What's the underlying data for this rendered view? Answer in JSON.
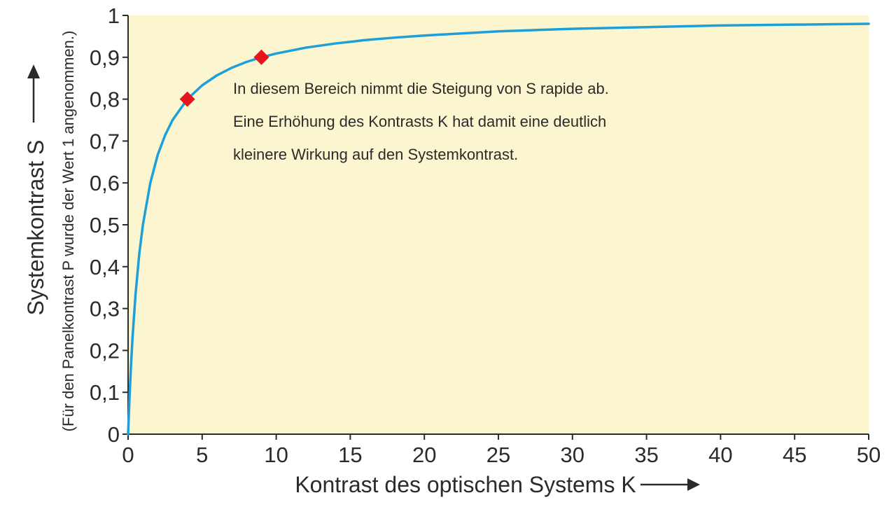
{
  "chart_data": {
    "type": "line",
    "x_label": "Kontrast des optischen Systems K",
    "y_label": "Systemkontrast S",
    "y_label_note": "(Für den Panelkontrast P wurde der Wert 1 angenommen.)",
    "xlim": [
      0,
      50
    ],
    "ylim": [
      0,
      1
    ],
    "x_ticks": [
      "0",
      "5",
      "10",
      "15",
      "20",
      "25",
      "30",
      "35",
      "40",
      "45",
      "50"
    ],
    "y_ticks": [
      "0",
      "0,1",
      "0,2",
      "0,3",
      "0,4",
      "0,5",
      "0,6",
      "0,7",
      "0,8",
      "0,9",
      "1"
    ],
    "series": [
      {
        "x": [
          0,
          0.1,
          0.2,
          0.3,
          0.5,
          0.75,
          1,
          1.5,
          2,
          2.5,
          3,
          4,
          5,
          6,
          7,
          8,
          9,
          10,
          12,
          14,
          16,
          18,
          20,
          25,
          30,
          35,
          40,
          45,
          50
        ],
        "y": [
          0,
          0.091,
          0.167,
          0.231,
          0.333,
          0.429,
          0.5,
          0.6,
          0.667,
          0.714,
          0.75,
          0.8,
          0.833,
          0.857,
          0.875,
          0.889,
          0.9,
          0.909,
          0.923,
          0.933,
          0.941,
          0.947,
          0.952,
          0.962,
          0.968,
          0.972,
          0.976,
          0.978,
          0.98
        ]
      }
    ],
    "highlight_points": [
      {
        "x": 4,
        "y": 0.8
      },
      {
        "x": 9,
        "y": 0.9
      }
    ],
    "annotation": [
      "In diesem Bereich nimmt die Steigung von S rapide ab.",
      "Eine Erhöhung des Kontrasts K hat damit eine deutlich",
      "kleinere Wirkung auf den Systemkontrast."
    ],
    "grid": false,
    "colors": {
      "plot_background": "#fbf6cf",
      "curve": "#1e9fd9",
      "marker": "#e3161e",
      "axis": "#2b2b2b"
    },
    "icons": {
      "x_arrow": "arrow-right-icon",
      "y_arrow": "arrow-up-icon"
    }
  }
}
